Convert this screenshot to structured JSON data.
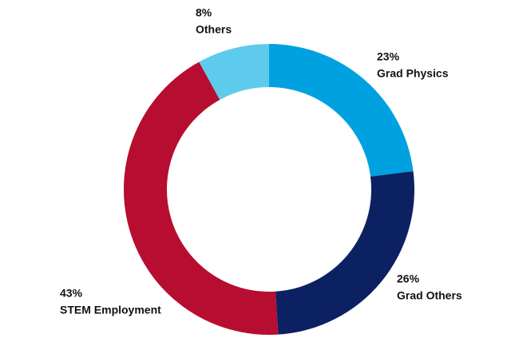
{
  "chart_data": {
    "type": "donut",
    "categories": [
      "Grad Physics",
      "Grad Others",
      "STEM Employment",
      "Others"
    ],
    "values": [
      23,
      26,
      43,
      8
    ],
    "value_labels": [
      "23%",
      "26%",
      "43%",
      "8%"
    ],
    "colors": [
      "#00a1e0",
      "#0c2161",
      "#b60d30",
      "#5ecbec"
    ]
  }
}
